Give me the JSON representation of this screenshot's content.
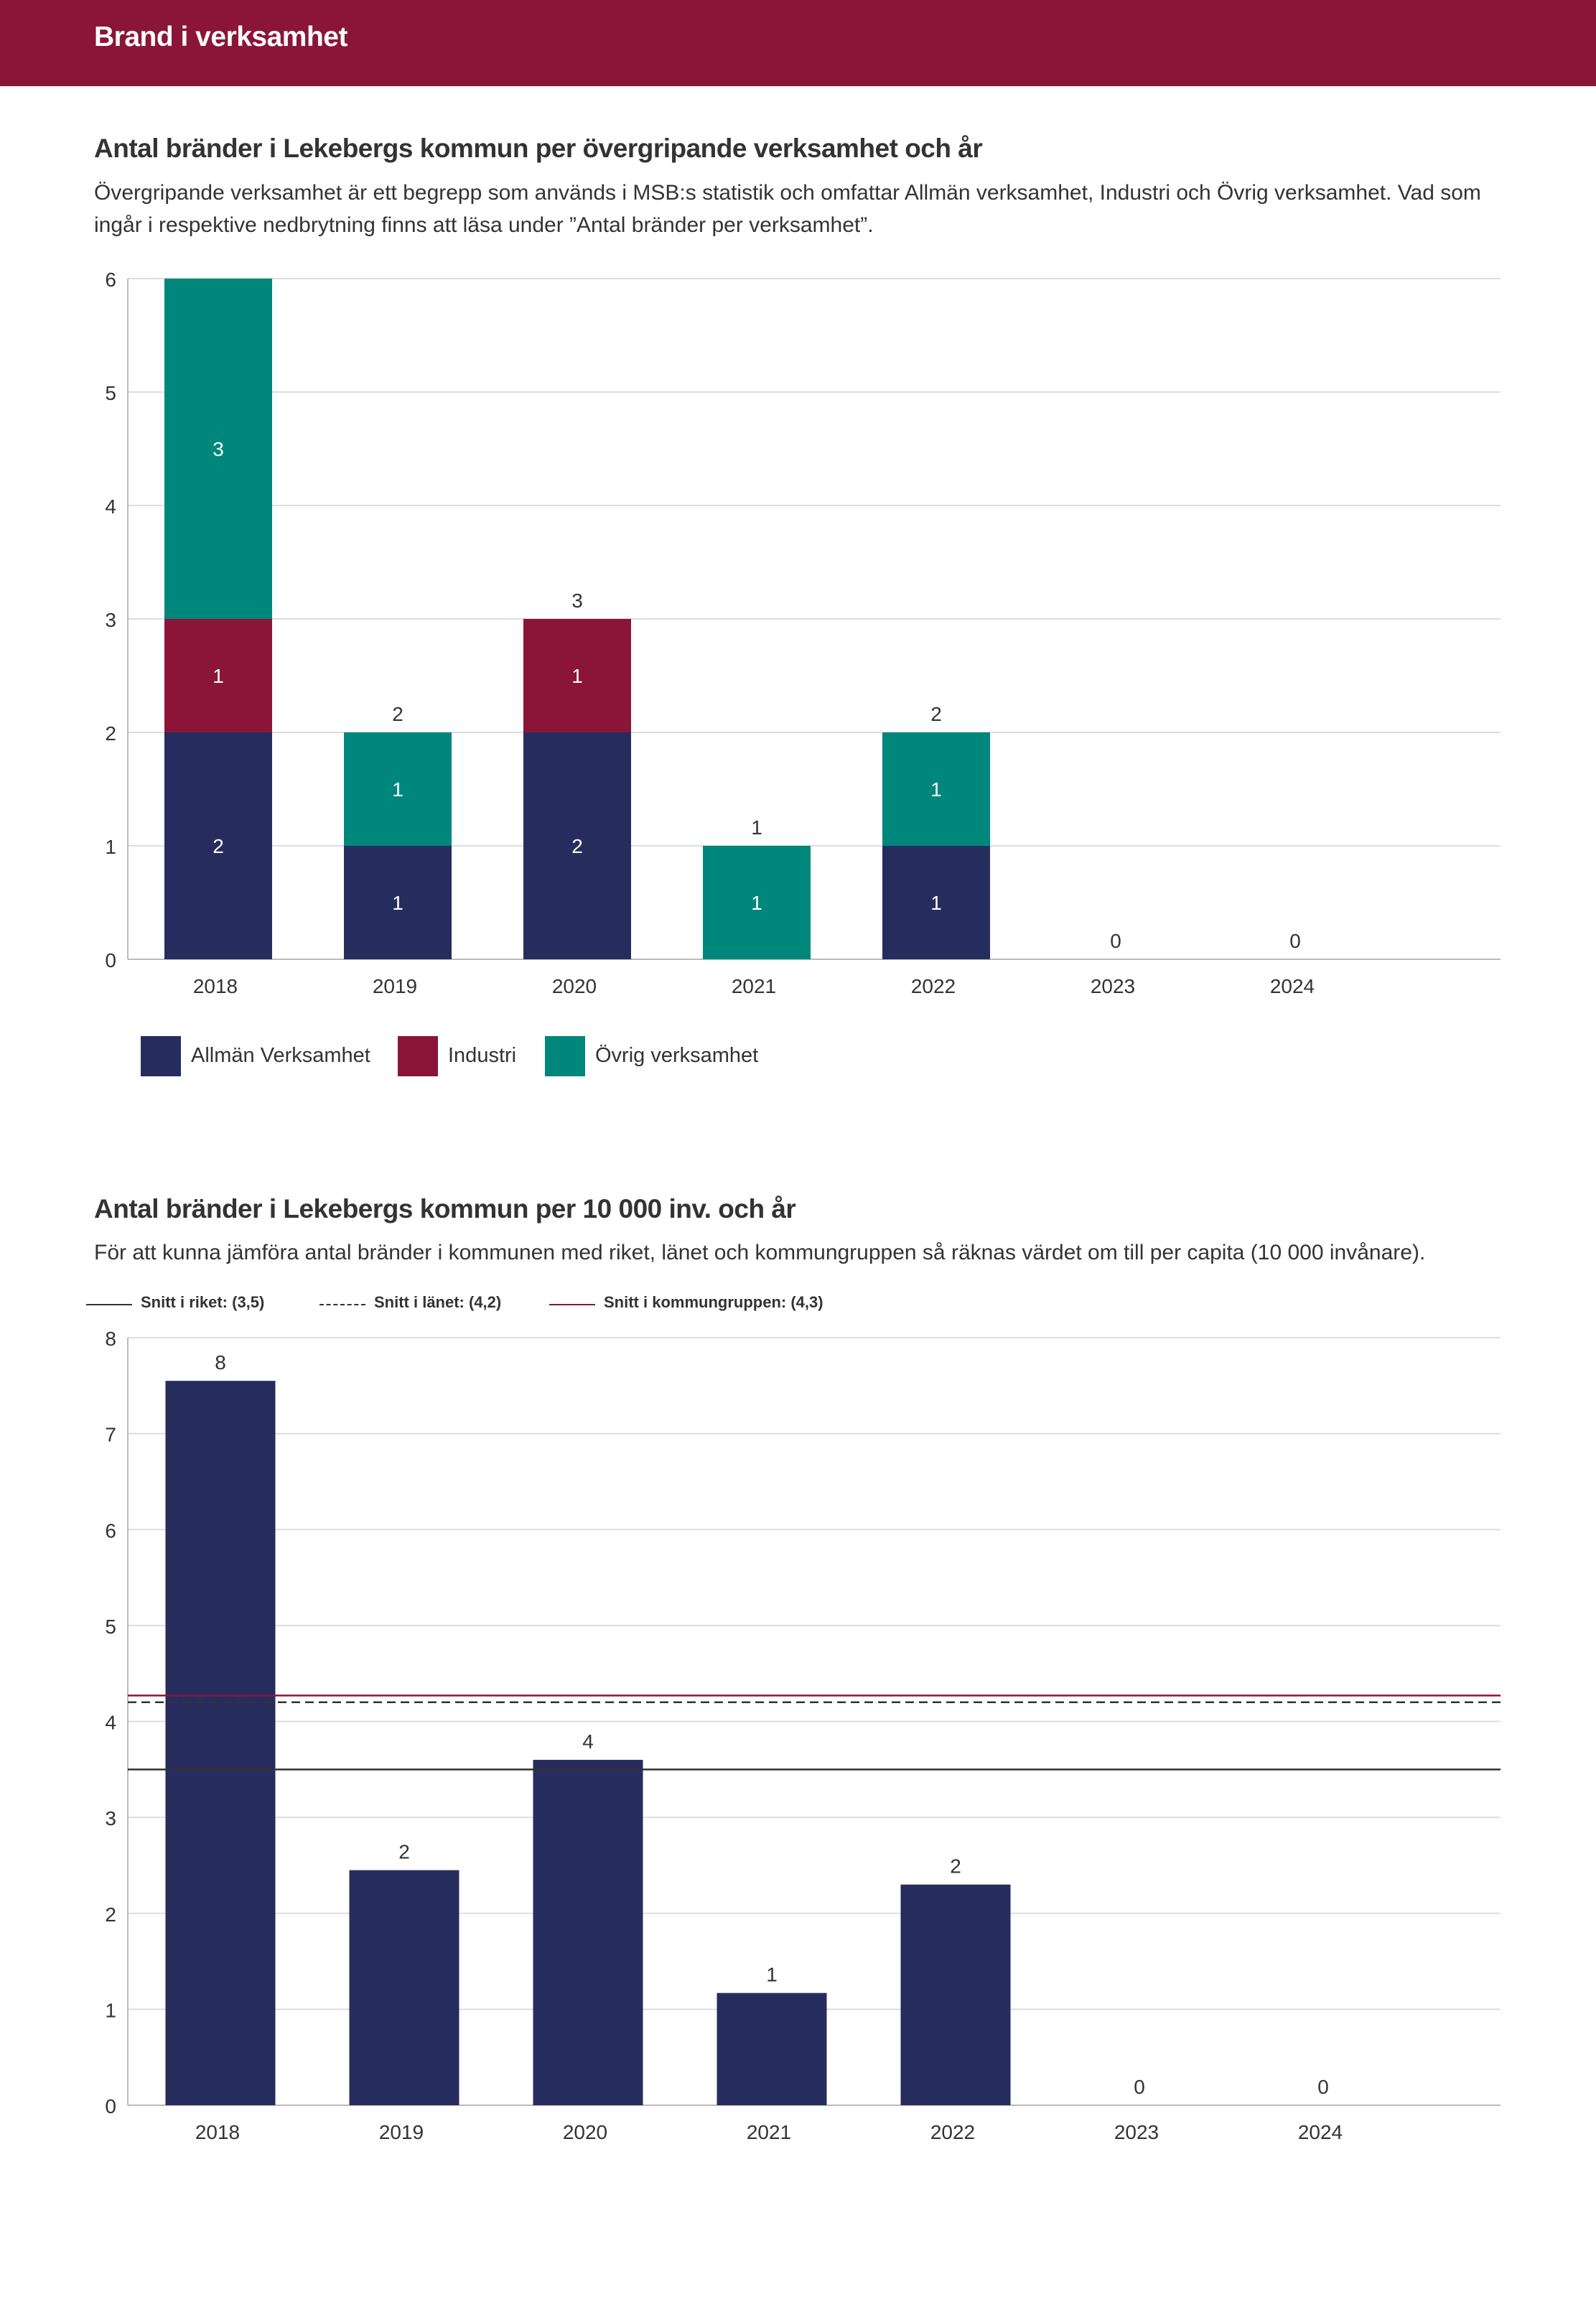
{
  "header": {
    "title": "Brand i verksamhet"
  },
  "section1": {
    "title": "Antal bränder i Lekebergs kommun per övergripande verksamhet och år",
    "description": "Övergripande verksamhet är ett begrepp som används i MSB:s statistik och omfattar Allmän verksamhet, Industri och Övrig verksamhet. Vad som ingår i respektive nedbrytning finns att läsa under ”Antal bränder per verksamhet”."
  },
  "section2": {
    "title": "Antal bränder i Lekebergs kommun per 10 000 inv. och år",
    "description": "För att kunna jämföra antal bränder i kommunen med riket, länet och kommungruppen så räknas värdet om till per capita (10 000 invånare)."
  },
  "colors": {
    "allman": "#262d5e",
    "industri": "#8b1538",
    "ovrig": "#00877c",
    "grid": "#dddddd",
    "axis": "#bbbbbb"
  },
  "chart_data": [
    {
      "type": "bar",
      "stacked": true,
      "title": "Antal bränder i Lekebergs kommun per övergripande verksamhet och år",
      "categories": [
        "2018",
        "2019",
        "2020",
        "2021",
        "2022",
        "2023",
        "2024"
      ],
      "series": [
        {
          "name": "Allmän Verksamhet",
          "color": "#262d5e",
          "values": [
            2,
            1,
            2,
            0,
            1,
            0,
            0
          ]
        },
        {
          "name": "Industri",
          "color": "#8b1538",
          "values": [
            1,
            0,
            1,
            0,
            0,
            0,
            0
          ]
        },
        {
          "name": "Övrig verksamhet",
          "color": "#00877c",
          "values": [
            3,
            1,
            0,
            1,
            1,
            0,
            0
          ]
        }
      ],
      "totals": [
        6,
        2,
        3,
        1,
        2,
        0,
        0
      ],
      "total_labels": [
        "",
        "2",
        "3",
        "1",
        "2",
        "0",
        "0"
      ],
      "yticks": [
        0,
        1,
        2,
        3,
        4,
        5,
        6
      ],
      "ylim": [
        0,
        6
      ],
      "legend_position": "bottom-left"
    },
    {
      "type": "bar",
      "title": "Antal bränder i Lekebergs kommun per 10 000 inv. och år",
      "categories": [
        "2018",
        "2019",
        "2020",
        "2021",
        "2022",
        "2023",
        "2024"
      ],
      "values": [
        7.55,
        2.45,
        3.6,
        1.17,
        2.3,
        0,
        0
      ],
      "value_labels": [
        "8",
        "2",
        "4",
        "1",
        "2",
        "0",
        "0"
      ],
      "color": "#262d5e",
      "yticks": [
        0,
        1,
        2,
        3,
        4,
        5,
        6,
        7,
        8
      ],
      "ylim": [
        0,
        8
      ],
      "reference_lines": [
        {
          "label": "Snitt i riket: (3,5)",
          "value": 3.5,
          "color": "#333333",
          "style": "solid"
        },
        {
          "label": "Snitt i länet: (4,2)",
          "value": 4.2,
          "color": "#333333",
          "style": "dashed"
        },
        {
          "label": "Snitt i kommungruppen: (4,3)",
          "value": 4.27,
          "color": "#8b1538",
          "style": "solid"
        }
      ],
      "legend_position": "top-left"
    }
  ]
}
